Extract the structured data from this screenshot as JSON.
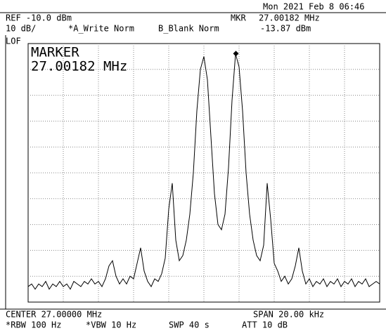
{
  "header": {
    "datetime": "Mon 2021 Feb  8 06:46",
    "ref": "REF -10.0 dBm",
    "scale": "10 dB/",
    "trace_a": "*A_Write Norm",
    "trace_b": "B_Blank Norm",
    "mkr": "MKR",
    "lof": "LOF"
  },
  "footer": {
    "center": "CENTER 27.00000 MHz",
    "span": "SPAN 20.00 kHz",
    "rbw": "*RBW 100 Hz",
    "vbw": "*VBW 10 Hz",
    "swp": "SWP 40 s",
    "att": "ATT 10 dB"
  },
  "chart_data": {
    "type": "line",
    "x": [
      26.99,
      26.9902,
      26.9904,
      26.9906,
      26.9908,
      26.991,
      26.9912,
      26.9914,
      26.9916,
      26.9918,
      26.992,
      26.9922,
      26.9924,
      26.9926,
      26.9928,
      26.993,
      26.9932,
      26.9934,
      26.9936,
      26.9938,
      26.994,
      26.9942,
      26.9944,
      26.9946,
      26.9948,
      26.995,
      26.9952,
      26.9954,
      26.9956,
      26.9958,
      26.996,
      26.9962,
      26.9964,
      26.9966,
      26.9968,
      26.997,
      26.9972,
      26.9974,
      26.9976,
      26.9978,
      26.998,
      26.9982,
      26.9984,
      26.9986,
      26.9988,
      26.999,
      26.9992,
      26.9994,
      26.9996,
      26.9998,
      27,
      27.0002,
      27.0004,
      27.0006,
      27.0008,
      27.001,
      27.0012,
      27.0014,
      27.0016,
      27.0018,
      27.002,
      27.0022,
      27.0024,
      27.0026,
      27.0028,
      27.003,
      27.0032,
      27.0034,
      27.0036,
      27.0038,
      27.004,
      27.0042,
      27.0044,
      27.0046,
      27.0048,
      27.005,
      27.0052,
      27.0054,
      27.0056,
      27.0058,
      27.006,
      27.0062,
      27.0064,
      27.0066,
      27.0068,
      27.007,
      27.0072,
      27.0074,
      27.0076,
      27.0078,
      27.008,
      27.0082,
      27.0084,
      27.0086,
      27.0088,
      27.009,
      27.0092,
      27.0094,
      27.0096,
      27.0098,
      27.01
    ],
    "series": [
      {
        "color": "#000000",
        "values": [
          -104,
          -103,
          -105,
          -103,
          -104,
          -102,
          -105,
          -103,
          -104,
          -102,
          -104,
          -103,
          -105,
          -102,
          -103,
          -104,
          -102,
          -103,
          -101,
          -103,
          -102,
          -104,
          -101,
          -96,
          -94,
          -100,
          -103,
          -101,
          -103,
          -100,
          -101,
          -95,
          -89,
          -98,
          -102,
          -104,
          -101,
          -102,
          -99,
          -93,
          -74,
          -64,
          -86,
          -94,
          -92,
          -86,
          -76,
          -60,
          -36,
          -20,
          -15,
          -24,
          -46,
          -68,
          -80,
          -82,
          -76,
          -58,
          -32,
          -14,
          -19,
          -36,
          -60,
          -76,
          -86,
          -92,
          -94,
          -88,
          -64,
          -78,
          -95,
          -98,
          -102,
          -100,
          -103,
          -101,
          -96,
          -89,
          -98,
          -103,
          -101,
          -104,
          -102,
          -103,
          -101,
          -104,
          -102,
          -103,
          -101,
          -104,
          -102,
          -103,
          -101,
          -104,
          -102,
          -103,
          -101,
          -104,
          -103,
          -102,
          -103
        ]
      }
    ],
    "xlim": [
      26.99,
      27.01
    ],
    "ylim": [
      -110,
      -10
    ],
    "grid": true,
    "marker": {
      "x": 27.00182,
      "value": -13.87,
      "x_label": "27.00182 MHz",
      "value_label": "-13.87 dBm",
      "title": "MARKER"
    }
  }
}
